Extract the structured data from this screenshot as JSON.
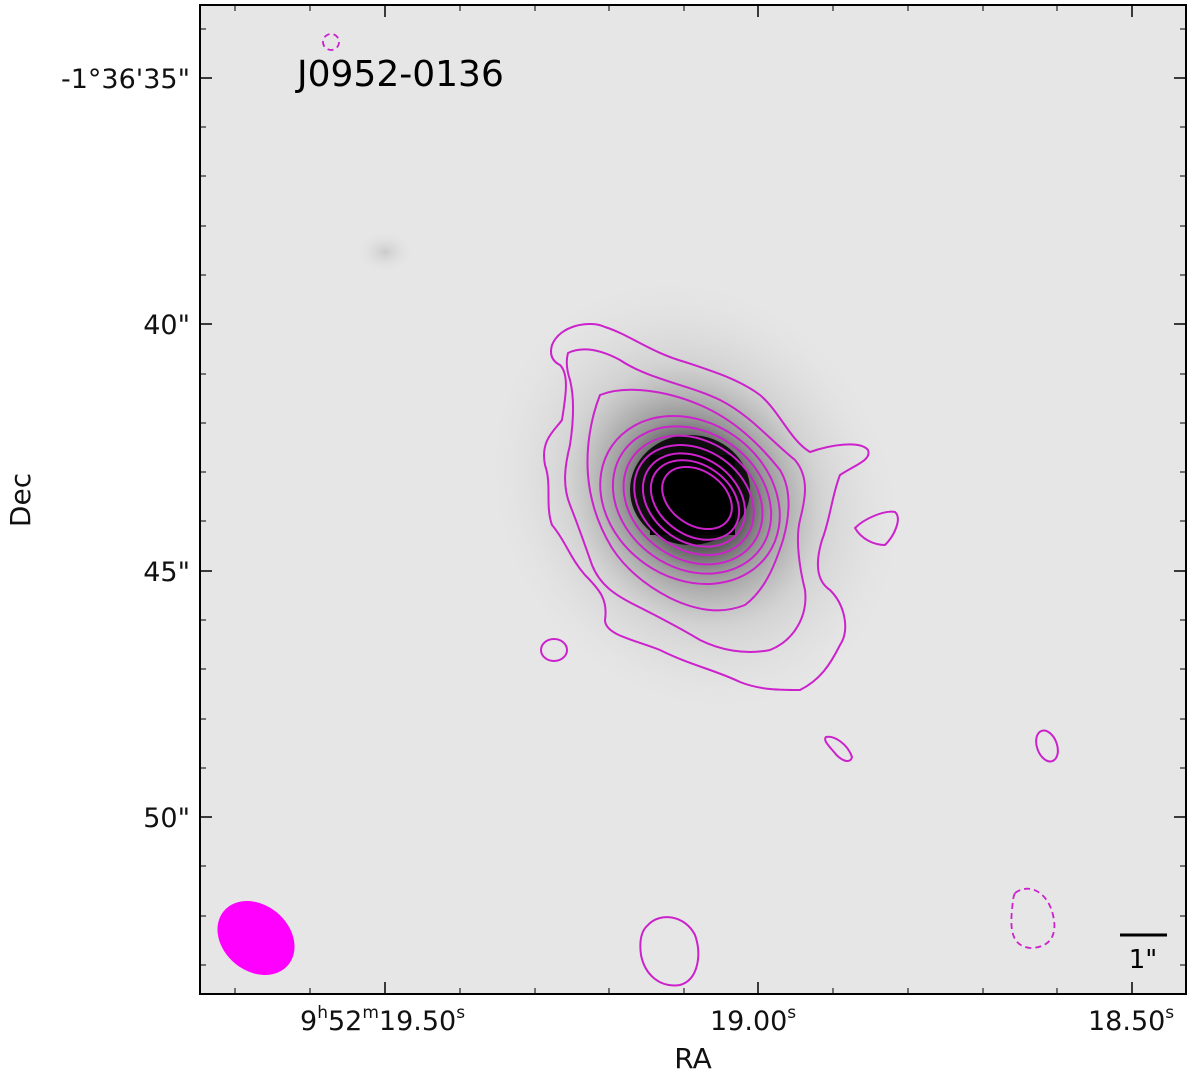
{
  "chart_data": {
    "type": "contour",
    "title": "J0952-0136",
    "xlabel": "RA",
    "ylabel": "Dec",
    "xlim": [
      "9h52m19.72s",
      "18.41s"
    ],
    "ylim": [
      "-1°36'53.5\"",
      "-1°36'33.6\""
    ],
    "x_ticks": [
      {
        "label_main": "9",
        "label_parts": [
          "h",
          "52",
          "m",
          "19.50",
          "s"
        ],
        "value_s": 19.5
      },
      {
        "label_main": "19.00",
        "label_parts": [
          "s"
        ],
        "value_s": 19.0
      },
      {
        "label_main": "18.50",
        "label_parts": [
          "s"
        ],
        "value_s": 18.5
      }
    ],
    "y_ticks": [
      {
        "label": "-1°36'35\"",
        "value_arcsec": 35
      },
      {
        "label": "40\"",
        "value_arcsec": 40
      },
      {
        "label": "45\"",
        "value_arcsec": 45
      },
      {
        "label": "50\"",
        "value_arcsec": 50
      }
    ],
    "background": "grayscale optical image, compact bright galaxy core",
    "contour_color": "#cc22cc",
    "beam_color": "#ff00ff",
    "contour_levels_solid": 10,
    "contour_levels_dashed": 1,
    "scale_bar": {
      "label": "1\"",
      "length_arcsec": 1
    },
    "grid": false
  }
}
